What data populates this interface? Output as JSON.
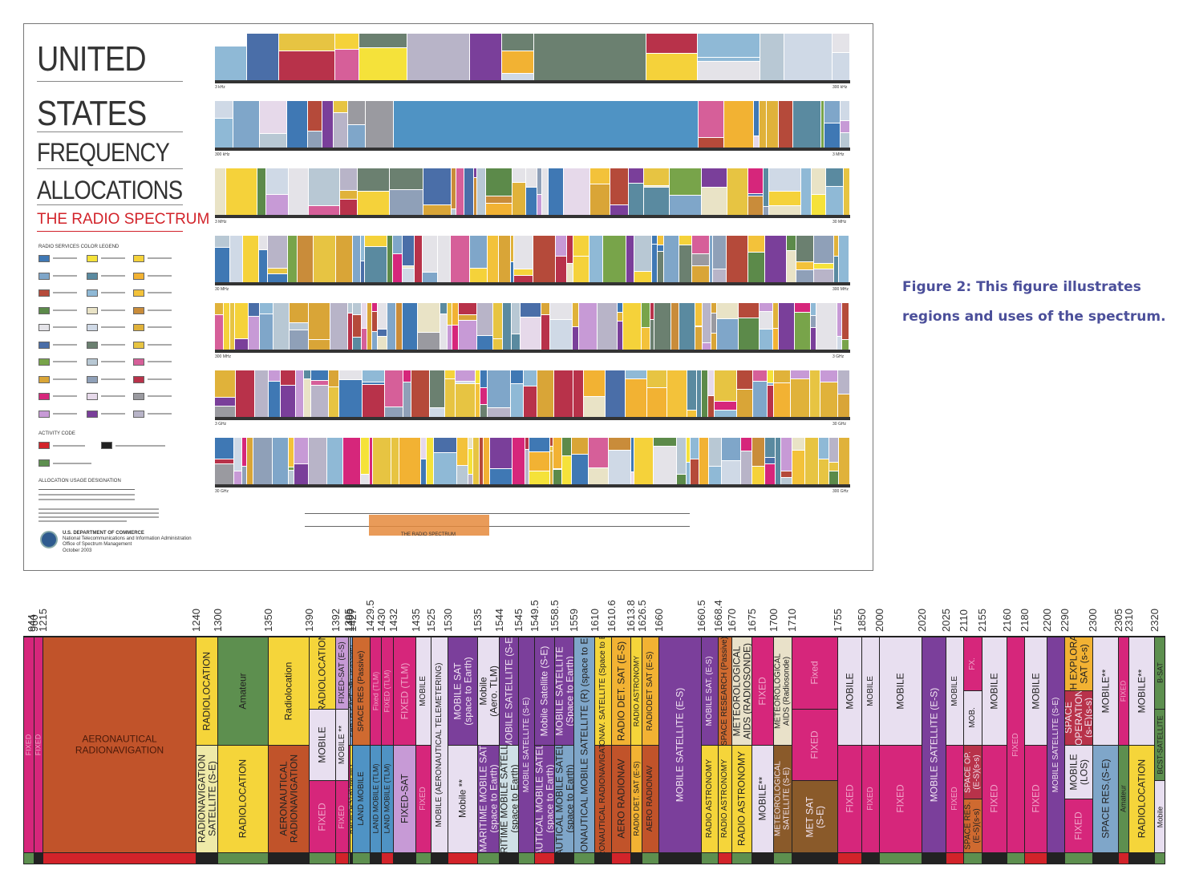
{
  "poster": {
    "title_line1": "UNITED",
    "title_line2": "STATES",
    "title_line3": "FREQUENCY",
    "title_line4": "ALLOCATIONS",
    "subtitle": "THE RADIO SPECTRUM",
    "legend_heading": "RADIO SERVICES COLOR LEGEND",
    "activity_heading": "ACTIVITY CODE",
    "usage_heading": "ALLOCATION USAGE DESIGNATION",
    "department": "U.S. DEPARTMENT OF COMMERCE",
    "agency": "National Telecommunications and Information Administration",
    "office": "Office of Spectrum Management",
    "date": "October 2003",
    "spectrum_bar_label": "THE RADIO SPECTRUM",
    "legend_colors": [
      "#3f78b4",
      "#f5e23a",
      "#f5d23a",
      "#7fa6c9",
      "#5a8aa0",
      "#f2b233",
      "#b54a3a",
      "#8fb9d6",
      "#f3c23a",
      "#5c8a4a",
      "#e9e3c6",
      "#c98c3a",
      "#e4e3e8",
      "#cfd9e6",
      "#e0b23a",
      "#4a6ea8",
      "#6b8070",
      "#e7c442",
      "#78a44a",
      "#b8c8d4",
      "#d65f99",
      "#d9a537",
      "#8fa0b8",
      "#b8324a",
      "#d6267b",
      "#e6d9ea",
      "#9a9aa0",
      "#c79ad6",
      "#7a3f9a",
      "#b8b4c8"
    ]
  },
  "poster_rows": [
    {
      "left_label": "3 kHz",
      "right_label": "300 kHz"
    },
    {
      "left_label": "300 kHz",
      "right_label": "3 MHz"
    },
    {
      "left_label": "3 MHz",
      "right_label": "30 MHz"
    },
    {
      "left_label": "30 MHz",
      "right_label": "300 MHz"
    },
    {
      "left_label": "300 MHz",
      "right_label": "3 GHz"
    },
    {
      "left_label": "3 GHz",
      "right_label": "30 GHz"
    },
    {
      "left_label": "30 GHz",
      "right_label": "300 GHz"
    }
  ],
  "caption": {
    "line1": "Figure 2: This figure illustrates",
    "line2": "regions and uses of the spectrum."
  },
  "detail": {
    "frequencies": [
      "944",
      "960",
      "1215",
      "1240",
      "1300",
      "1350",
      "1390",
      "1392",
      "1395",
      "1400",
      "1427",
      "1429.5",
      "1430",
      "1432",
      "1435",
      "1525",
      "1530",
      "1535",
      "1544",
      "1545",
      "1549.5",
      "1558.5",
      "1559",
      "1610",
      "1610.6",
      "1613.8",
      "1626.5",
      "1660",
      "1660.5",
      "1668.4",
      "1670",
      "1675",
      "1700",
      "1710",
      "1755",
      "1850",
      "2000",
      "2020",
      "2025",
      "2110",
      "2155",
      "2160",
      "2180",
      "2200",
      "2290",
      "2300",
      "2305",
      "2310",
      "2320"
    ],
    "bands": [
      {
        "blocks": [
          {
            "label": "FIXED",
            "color": "#d6267b"
          }
        ]
      },
      {
        "blocks": [
          {
            "label": "FIXED",
            "color": "#d6267b"
          }
        ]
      },
      {
        "blocks": [
          {
            "label": "AERONAUTICAL\nRADIONAVIGATION",
            "color": "#c1532a",
            "h": 1
          }
        ]
      },
      {
        "blocks": [
          {
            "label": "RADIOLOCATION",
            "color": "#f5d53a"
          },
          {
            "label": "RADIONAVIGATION\nSATELLITE (S-E)",
            "color": "#efeaa8"
          }
        ]
      },
      {
        "blocks": [
          {
            "label": "Amateur",
            "color": "#5d8f4f"
          },
          {
            "label": "RADIOLOCATION",
            "color": "#f5d53a"
          }
        ]
      },
      {
        "blocks": [
          {
            "label": "Radiolocation",
            "color": "#f5d53a"
          },
          {
            "label": "AERONAUTICAL\nRADIONAVIGATION",
            "color": "#c1532a"
          }
        ]
      },
      {
        "blocks": [
          {
            "label": "RADIOLOCATION",
            "color": "#f5d53a"
          },
          {
            "label": "MOBILE",
            "color": "#e8dff0"
          },
          {
            "label": "FIXED",
            "color": "#d6267b"
          }
        ]
      },
      {
        "blocks": [
          {
            "label": "FIXED-SAT (E-S)",
            "color": "#c79ad6"
          },
          {
            "label": "MOBILE **",
            "color": "#e8dff0"
          },
          {
            "label": "FIXED",
            "color": "#d6267b"
          }
        ]
      },
      {
        "blocks": [
          {
            "label": "MOBILE **",
            "color": "#e8dff0"
          },
          {
            "label": "FIXED",
            "color": "#d6267b"
          }
        ]
      },
      {
        "blocks": [
          {
            "label": "EARTH EXPL SAT (Passive)",
            "color": "#7a9ec7"
          },
          {
            "label": "RADIO ASTRONOMY",
            "color": "#f5d53a"
          }
        ]
      },
      {
        "blocks": [
          {
            "label": "SPACE RES (Passive)",
            "color": "#cf6a30"
          },
          {
            "label": "LAND MOBILE",
            "color": "#4f93c4"
          }
        ]
      },
      {
        "blocks": [
          {
            "label": "Fixed (TLM)",
            "color": "#d6267b"
          },
          {
            "label": "LAND MOBILE (TLM)",
            "color": "#4f93c4"
          }
        ]
      },
      {
        "blocks": [
          {
            "label": "FIXED (TLM)",
            "color": "#d6267b"
          },
          {
            "label": "LAND MOBILE (TLM)",
            "color": "#4f93c4"
          }
        ]
      },
      {
        "blocks": [
          {
            "label": "FIXED (TLM)",
            "color": "#d6267b"
          },
          {
            "label": "FIXED-SAT",
            "color": "#c79ad6"
          }
        ]
      },
      {
        "blocks": [
          {
            "label": "MOBILE",
            "color": "#e8dff0"
          },
          {
            "label": "FIXED",
            "color": "#d6267b"
          }
        ]
      },
      {
        "blocks": [
          {
            "label": "MOBILE (AERONAUTICAL TELEMETERING)",
            "color": "#e8dff0"
          }
        ]
      },
      {
        "blocks": [
          {
            "label": "MOBILE SAT\n(space to Earth)",
            "color": "#7b3f9b"
          },
          {
            "label": "Mobile **",
            "color": "#e8dff0"
          }
        ]
      },
      {
        "blocks": [
          {
            "label": "Mobile\n(Aero. TLM)",
            "color": "#e8dff0"
          },
          {
            "label": "MARITIME MOBILE SAT\n(space to Earth)",
            "color": "#7b3f9b"
          }
        ]
      },
      {
        "blocks": [
          {
            "label": "MOBILE SATELLITE (S-E)",
            "color": "#7b3f9b"
          },
          {
            "label": "MARITIME MOBILE SATELLITE\n(space to Earth)",
            "color": "#cfe0e6"
          }
        ]
      },
      {
        "blocks": [
          {
            "label": "MOBILE SATELLITE (S-E)",
            "color": "#7b3f9b"
          }
        ]
      },
      {
        "blocks": [
          {
            "label": "Mobile Satellite (S-E)",
            "color": "#7b3f9b"
          },
          {
            "label": "AERONAUTICAL MOBILE SATELLITE (R)\n(space to Earth)",
            "color": "#7b3f9b"
          }
        ]
      },
      {
        "blocks": [
          {
            "label": "MOBILE SATELLITE\n(Space to Earth)",
            "color": "#7b3f9b"
          },
          {
            "label": "AERONAUTICAL MOBILE SATELLITE (R)\n(space to Earth)",
            "color": "#7fa6c9"
          }
        ]
      },
      {
        "blocks": [
          {
            "label": "AERONAUTICAL MOBILE SATELLITE (R) (space to Earth)",
            "color": "#7fa6c9"
          }
        ]
      },
      {
        "blocks": [
          {
            "label": "RADIONAV. SATELLITE (Space to Earth)",
            "color": "#f5d53a"
          },
          {
            "label": "AERONAUTICAL RADIONAVIGATION",
            "color": "#c1532a"
          }
        ]
      },
      {
        "blocks": [
          {
            "label": "RADIO DET. SAT (E-S)",
            "color": "#f2b233"
          },
          {
            "label": "AERO RADIONAV",
            "color": "#c1532a"
          }
        ]
      },
      {
        "blocks": [
          {
            "label": "RADIO ASTRONOMY",
            "color": "#f5d53a"
          },
          {
            "label": "RADIO DET. SAT (E-S)",
            "color": "#f2b233"
          }
        ]
      },
      {
        "blocks": [
          {
            "label": "RADIODET SAT (E-S)",
            "color": "#f2b233"
          },
          {
            "label": "AERO RADIONAV",
            "color": "#c1532a"
          }
        ]
      },
      {
        "blocks": [
          {
            "label": "MOBILE SATELLITE (E-S)",
            "color": "#7b3f9b"
          }
        ]
      },
      {
        "blocks": [
          {
            "label": "MOBILE SAT. (E-S)",
            "color": "#7b3f9b"
          },
          {
            "label": "RADIO ASTRONOMY",
            "color": "#f5d53a"
          }
        ]
      },
      {
        "blocks": [
          {
            "label": "SPACE RESEARCH (Passive)",
            "color": "#cf6a30"
          },
          {
            "label": "RADIO ASTRONOMY",
            "color": "#f5d53a"
          }
        ]
      },
      {
        "blocks": [
          {
            "label": "METEOROLOGICAL\nAIDS (RADIOSONDE)",
            "color": "#e9e1c9"
          },
          {
            "label": "RADIO ASTRONOMY",
            "color": "#f5d53a"
          }
        ]
      },
      {
        "blocks": [
          {
            "label": "FIXED",
            "color": "#d6267b"
          },
          {
            "label": "MOBILE**",
            "color": "#e8dff0"
          }
        ]
      },
      {
        "blocks": [
          {
            "label": "METEOROLOGICAL\nAIDS (Radiosonde)",
            "color": "#e9e1c9"
          },
          {
            "label": "METEOROLOGICAL\nSATELLITE (S-E)",
            "color": "#8a5a2a"
          }
        ]
      },
      {
        "blocks": [
          {
            "label": "Fixed",
            "color": "#d6267b"
          },
          {
            "label": "FIXED",
            "color": "#d6267b"
          },
          {
            "label": "MET SAT\n(S-E)",
            "color": "#8a5a2a"
          }
        ]
      },
      {
        "blocks": [
          {
            "label": "MOBILE",
            "color": "#e8dff0"
          },
          {
            "label": "FIXED",
            "color": "#d6267b"
          }
        ]
      },
      {
        "blocks": [
          {
            "label": "MOBILE",
            "color": "#e8dff0"
          },
          {
            "label": "FIXED",
            "color": "#d6267b"
          }
        ]
      },
      {
        "blocks": [
          {
            "label": "MOBILE",
            "color": "#e8dff0"
          },
          {
            "label": "FIXED",
            "color": "#d6267b"
          }
        ]
      },
      {
        "blocks": [
          {
            "label": "MOBILE SATELLITE (E-S)",
            "color": "#7b3f9b"
          }
        ]
      },
      {
        "blocks": [
          {
            "label": "MOBILE",
            "color": "#e8dff0"
          },
          {
            "label": "FIXED",
            "color": "#d6267b"
          }
        ]
      },
      {
        "blocks": [
          {
            "label": "FX.",
            "color": "#d6267b"
          },
          {
            "label": "MOB.",
            "color": "#e8dff0"
          },
          {
            "label": "SPACE OP.\n(E-S)(s-s)",
            "color": "#b8324a"
          },
          {
            "label": "SPACE RES.\n(E-S)(s-s)",
            "color": "#cf6a30"
          }
        ]
      },
      {
        "blocks": [
          {
            "label": "MOBILE",
            "color": "#e8dff0"
          },
          {
            "label": "FIXED",
            "color": "#d6267b"
          }
        ]
      },
      {
        "blocks": [
          {
            "label": "FIXED",
            "color": "#d6267b"
          }
        ]
      },
      {
        "blocks": [
          {
            "label": "MOBILE",
            "color": "#e8dff0"
          },
          {
            "label": "FIXED",
            "color": "#d6267b"
          }
        ]
      },
      {
        "blocks": [
          {
            "label": "MOBILE SATELLITE (S-E)",
            "color": "#7b3f9b"
          }
        ]
      },
      {
        "blocks": [
          {
            "label": "EARTH EXPLORATION\nSAT (s-s)",
            "color": "#f2b233"
          },
          {
            "label": "SPACE\nOPERATION\n(s-E)(s-s)",
            "color": "#b8324a"
          },
          {
            "label": "MOBILE\n(LOS)",
            "color": "#e8dff0"
          },
          {
            "label": "FIXED",
            "color": "#d6267b"
          }
        ]
      },
      {
        "blocks": [
          {
            "label": "MOBILE**",
            "color": "#e8dff0"
          },
          {
            "label": "SPACE RES.(S-E)",
            "color": "#7fa6c9"
          }
        ]
      },
      {
        "blocks": [
          {
            "label": "FIXED",
            "color": "#d6267b"
          },
          {
            "label": "Amateur",
            "color": "#5d8f4f"
          }
        ]
      },
      {
        "blocks": [
          {
            "label": "MOBILE**",
            "color": "#e8dff0"
          },
          {
            "label": "RADIOLOCATION",
            "color": "#f5d53a"
          }
        ]
      },
      {
        "blocks": [
          {
            "label": "B-SAT",
            "color": "#5d8f4f"
          },
          {
            "label": "BCST-SATELLITE",
            "color": "#5d8f4f"
          },
          {
            "label": "Mobile",
            "color": "#e8dff0"
          }
        ]
      }
    ],
    "activity": [
      "#5d8f4f",
      "#222",
      "#d2232a",
      "#222",
      "#5d8f4f",
      "#222",
      "#5d8f4f",
      "#d2232a",
      "#5d8f4f",
      "#222",
      "#5d8f4f",
      "#222",
      "#d2232a",
      "#222",
      "#5d8f4f",
      "#222",
      "#d2232a",
      "#5d8f4f",
      "#222",
      "#5d8f4f",
      "#d2232a",
      "#222"
    ]
  }
}
